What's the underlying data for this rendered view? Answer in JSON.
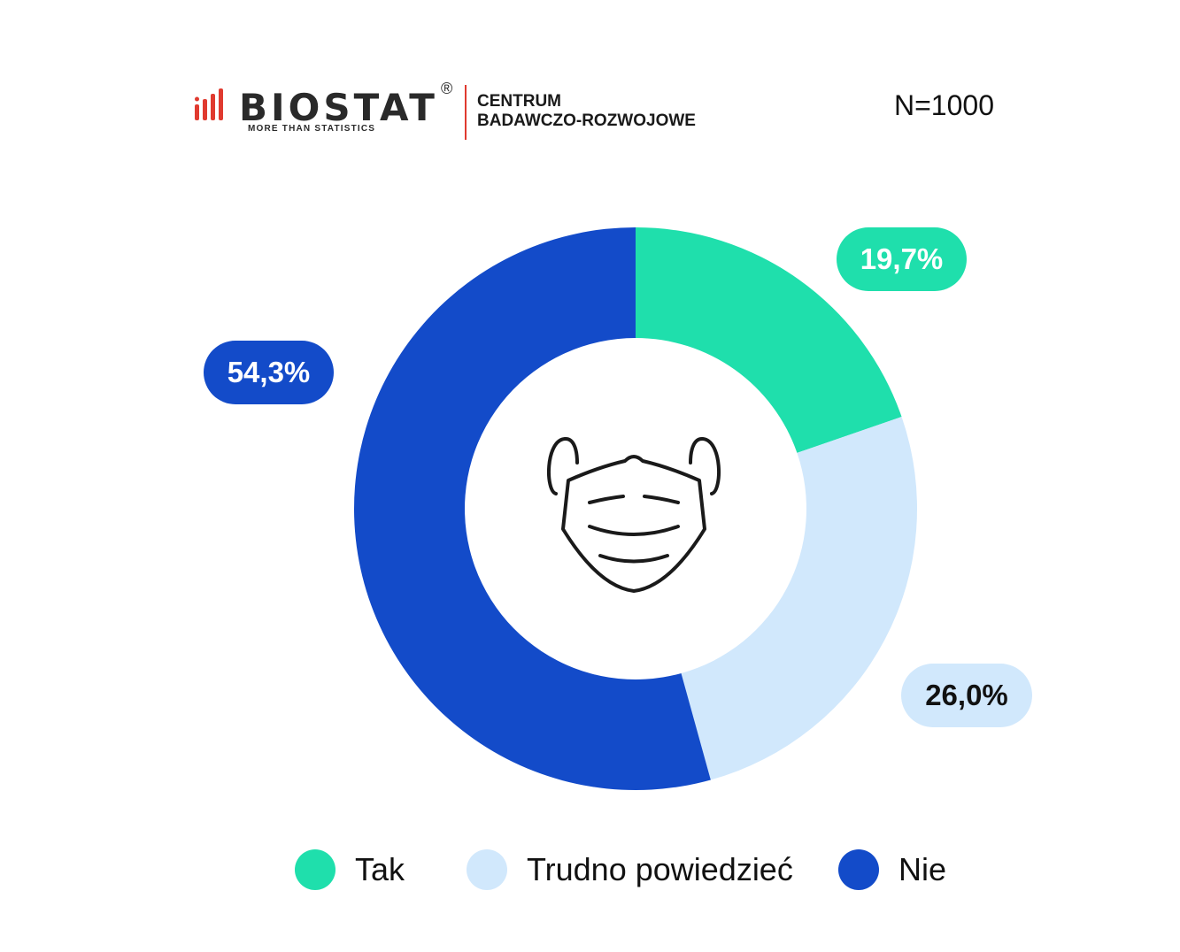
{
  "header": {
    "logo_name": "BIOSTAT",
    "logo_registered": "®",
    "logo_tagline": "MORE THAN STATISTICS",
    "logo_center_line1": "CENTRUM",
    "logo_center_line2": "BADAWCZO-ROZWOJOWE",
    "sample_size": "N=1000"
  },
  "colors": {
    "tak": "#1fdfac",
    "trudno": "#d1e8fc",
    "nie": "#134bc9",
    "logo_red": "#e03a2f"
  },
  "chart_data": {
    "type": "pie",
    "donut": true,
    "center_icon": "face-mask-icon",
    "slices": [
      {
        "name": "Tak",
        "value": 19.7,
        "label": "19,7%",
        "color": "#1fdfac",
        "label_text_color": "#ffffff"
      },
      {
        "name": "Trudno powiedzieć",
        "value": 26.0,
        "label": "26,0%",
        "color": "#d1e8fc",
        "label_text_color": "#111111"
      },
      {
        "name": "Nie",
        "value": 54.3,
        "label": "54,3%",
        "color": "#134bc9",
        "label_text_color": "#ffffff"
      }
    ],
    "legend_position": "bottom"
  }
}
